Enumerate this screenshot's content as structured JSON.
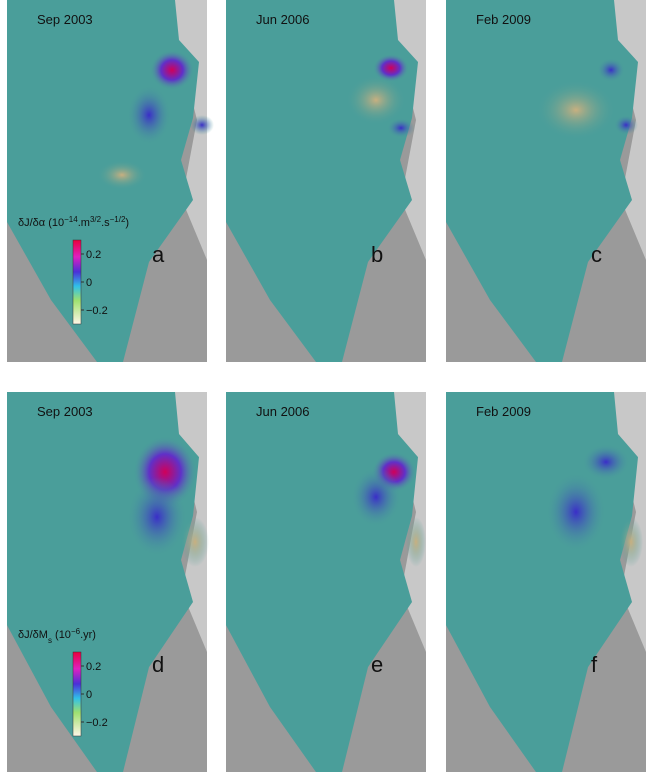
{
  "panels": [
    {
      "date": "Sep 2003",
      "letter": "a"
    },
    {
      "date": "Jun 2006",
      "letter": "b"
    },
    {
      "date": "Feb 2009",
      "letter": "c"
    },
    {
      "date": "Sep 2003",
      "letter": "d"
    },
    {
      "date": "Jun 2006",
      "letter": "e"
    },
    {
      "date": "Feb 2009",
      "letter": "f"
    }
  ],
  "colorbars": [
    {
      "title": [
        {
          "text": "δJ/δα (10"
        },
        {
          "sup": "−14"
        },
        {
          "text": ".m"
        },
        {
          "sup": "3/2"
        },
        {
          "text": ".s"
        },
        {
          "sup": "−1/2"
        },
        {
          "text": ")"
        }
      ],
      "lim": [
        -0.3,
        0.3
      ],
      "ticks": [
        0.2,
        0,
        {
          "value": -0.2,
          "label": "−0.2"
        }
      ]
    },
    {
      "title": [
        {
          "text": "δJ/δM"
        },
        {
          "sub": "s"
        },
        {
          "text": " (10"
        },
        {
          "sup": "−6"
        },
        {
          "text": ".yr)"
        }
      ],
      "lim": [
        -0.3,
        0.3
      ],
      "ticks": [
        0.2,
        0,
        {
          "value": -0.2,
          "label": "−0.2"
        }
      ]
    }
  ]
}
